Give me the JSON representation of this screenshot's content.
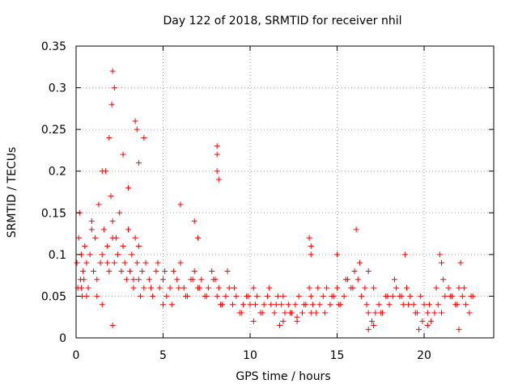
{
  "chart_data": {
    "type": "scatter",
    "title": "Day 122 of 2018, SRMTID for receiver nhil",
    "xlabel": "GPS time / hours",
    "ylabel": "SRMTID / TECUs",
    "xlim": [
      0,
      24
    ],
    "ylim": [
      0,
      0.35
    ],
    "xticks": [
      0,
      5,
      10,
      15,
      20
    ],
    "xtick_labels": [
      "0",
      "5",
      "10",
      "15",
      "20"
    ],
    "yticks": [
      0,
      0.05,
      0.1,
      0.15,
      0.2,
      0.25,
      0.3,
      0.35
    ],
    "ytick_labels": [
      "0",
      "0.05",
      "0.1",
      "0.15",
      "0.2",
      "0.25",
      "0.3",
      "0.35"
    ],
    "grid": true,
    "marker": "plus",
    "series": [
      {
        "name": "SRMTID",
        "color": "#ff0000",
        "x": [
          0.05,
          0.1,
          0.15,
          0.2,
          0.25,
          0.3,
          0.35,
          0.4,
          0.45,
          0.5,
          0.6,
          0.7,
          0.8,
          0.9,
          1.0,
          1.1,
          1.2,
          1.3,
          1.4,
          1.5,
          1.6,
          1.7,
          1.8,
          1.9,
          2.0,
          2.05,
          2.1,
          2.2,
          2.3,
          2.4,
          2.5,
          2.6,
          2.7,
          2.8,
          2.9,
          3.0,
          3.1,
          3.2,
          3.3,
          3.4,
          3.5,
          3.6,
          3.7,
          3.8,
          3.9,
          4.0,
          4.2,
          4.4,
          4.6,
          4.8,
          5.0,
          5.2,
          5.4,
          5.6,
          5.8,
          6.0,
          6.2,
          6.4,
          6.6,
          6.8,
          7.0,
          7.2,
          7.4,
          7.6,
          7.8,
          8.0,
          8.1,
          8.2,
          8.4,
          8.6,
          8.8,
          9.0,
          9.2,
          9.4,
          9.6,
          9.8,
          10.0,
          10.2,
          10.4,
          10.6,
          10.8,
          11.0,
          11.2,
          11.4,
          11.6,
          11.8,
          12.0,
          12.2,
          12.4,
          12.6,
          12.8,
          13.0,
          13.2,
          13.4,
          13.5,
          13.6,
          13.8,
          14.0,
          14.2,
          14.4,
          14.6,
          14.8,
          15.0,
          15.2,
          15.4,
          15.6,
          15.8,
          16.0,
          16.2,
          16.4,
          16.6,
          16.8,
          17.0,
          17.2,
          17.4,
          17.6,
          17.8,
          18.0,
          18.2,
          18.4,
          18.6,
          18.8,
          19.0,
          19.2,
          19.4,
          19.6,
          19.8,
          20.0,
          20.2,
          20.4,
          20.6,
          20.8,
          21.0,
          21.2,
          21.4,
          21.6,
          21.8,
          22.0,
          22.2,
          22.4,
          22.6,
          22.8,
          0.3,
          0.6,
          0.9,
          1.2,
          1.5,
          1.8,
          2.1,
          2.4,
          2.7,
          3.0,
          3.3,
          3.6,
          3.9,
          4.3,
          4.7,
          5.1,
          5.5,
          5.9,
          6.3,
          6.7,
          7.1,
          7.5,
          7.9,
          8.3,
          8.7,
          9.1,
          9.5,
          9.9,
          10.3,
          10.7,
          11.1,
          11.5,
          11.9,
          12.3,
          12.7,
          13.1,
          13.5,
          13.9,
          14.3,
          14.7,
          15.1,
          15.5,
          15.9,
          16.3,
          16.7,
          17.1,
          17.5,
          17.9,
          18.3,
          18.7,
          19.1,
          19.5,
          19.9,
          20.3,
          20.7,
          21.1,
          21.5,
          21.9,
          22.3,
          22.7,
          1.5,
          1.9,
          2.1,
          2.2,
          3.4,
          3.5,
          3.6,
          6.0,
          6.8,
          7.0,
          8.1,
          8.1,
          8.1,
          8.2,
          13.4,
          13.5,
          13.5,
          15.0,
          16.1,
          16.8,
          18.9,
          20.9,
          21.0,
          22.1,
          2.1,
          5.0,
          10.2,
          11.7,
          11.9,
          12.7,
          16.8,
          17.1,
          19.7,
          20.2,
          22.0
        ],
        "values": [
          0.09,
          0.06,
          0.12,
          0.15,
          0.07,
          0.1,
          0.05,
          0.08,
          0.07,
          0.11,
          0.09,
          0.06,
          0.1,
          0.14,
          0.08,
          0.12,
          0.07,
          0.16,
          0.09,
          0.1,
          0.13,
          0.2,
          0.11,
          0.08,
          0.17,
          0.28,
          0.14,
          0.09,
          0.12,
          0.1,
          0.15,
          0.08,
          0.11,
          0.09,
          0.07,
          0.13,
          0.08,
          0.1,
          0.06,
          0.12,
          0.09,
          0.07,
          0.05,
          0.08,
          0.06,
          0.09,
          0.07,
          0.05,
          0.08,
          0.06,
          0.07,
          0.05,
          0.06,
          0.08,
          0.07,
          0.09,
          0.06,
          0.05,
          0.07,
          0.08,
          0.06,
          0.07,
          0.05,
          0.06,
          0.08,
          0.07,
          0.05,
          0.06,
          0.04,
          0.05,
          0.06,
          0.04,
          0.05,
          0.03,
          0.04,
          0.05,
          0.04,
          0.06,
          0.05,
          0.03,
          0.04,
          0.05,
          0.04,
          0.03,
          0.05,
          0.04,
          0.03,
          0.04,
          0.03,
          0.04,
          0.05,
          0.03,
          0.04,
          0.06,
          0.05,
          0.04,
          0.03,
          0.04,
          0.05,
          0.06,
          0.04,
          0.05,
          0.06,
          0.04,
          0.05,
          0.07,
          0.06,
          0.08,
          0.07,
          0.05,
          0.06,
          0.03,
          0.02,
          0.03,
          0.04,
          0.03,
          0.05,
          0.04,
          0.05,
          0.06,
          0.05,
          0.04,
          0.06,
          0.05,
          0.04,
          0.03,
          0.05,
          0.04,
          0.03,
          0.02,
          0.03,
          0.04,
          0.03,
          0.05,
          0.06,
          0.05,
          0.04,
          0.06,
          0.05,
          0.04,
          0.03,
          0.05,
          0.06,
          0.05,
          0.13,
          0.05,
          0.04,
          0.09,
          0.12,
          0.1,
          0.22,
          0.18,
          0.07,
          0.11,
          0.24,
          0.06,
          0.09,
          0.08,
          0.04,
          0.06,
          0.05,
          0.07,
          0.06,
          0.05,
          0.07,
          0.04,
          0.08,
          0.06,
          0.03,
          0.05,
          0.04,
          0.03,
          0.06,
          0.04,
          0.05,
          0.03,
          0.02,
          0.04,
          0.03,
          0.06,
          0.03,
          0.05,
          0.04,
          0.07,
          0.06,
          0.09,
          0.04,
          0.06,
          0.03,
          0.05,
          0.07,
          0.05,
          0.04,
          0.03,
          0.02,
          0.04,
          0.06,
          0.07,
          0.05,
          0.04,
          0.06,
          0.05,
          0.2,
          0.24,
          0.32,
          0.3,
          0.26,
          0.25,
          0.21,
          0.16,
          0.14,
          0.12,
          0.23,
          0.2,
          0.22,
          0.19,
          0.12,
          0.11,
          0.1,
          0.1,
          0.13,
          0.08,
          0.1,
          0.1,
          0.09,
          0.09,
          0.015,
          0.04,
          0.02,
          0.015,
          0.02,
          0.025,
          0.01,
          0.015,
          0.01,
          0.015,
          0.01
        ]
      }
    ]
  }
}
